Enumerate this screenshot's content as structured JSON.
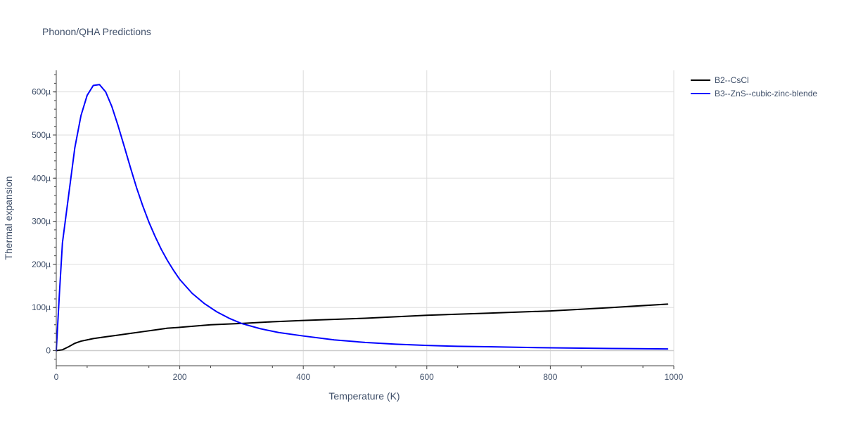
{
  "chart_data": {
    "type": "line",
    "title": "Phonon/QHA Predictions",
    "xlabel": "Temperature (K)",
    "ylabel": "Thermal expansion",
    "xlim": [
      0,
      1000
    ],
    "ylim": [
      -3.5e-05,
      0.00065
    ],
    "grid": true,
    "legend_position": "top-right",
    "x_ticks": [
      {
        "value": 0,
        "label": "0"
      },
      {
        "value": 200,
        "label": "200"
      },
      {
        "value": 400,
        "label": "400"
      },
      {
        "value": 600,
        "label": "600"
      },
      {
        "value": 800,
        "label": "800"
      },
      {
        "value": 1000,
        "label": "1000"
      }
    ],
    "y_ticks": [
      {
        "value": 0,
        "label": "0"
      },
      {
        "value": 0.0001,
        "label": "100µ"
      },
      {
        "value": 0.0002,
        "label": "200µ"
      },
      {
        "value": 0.0003,
        "label": "300µ"
      },
      {
        "value": 0.0004,
        "label": "400µ"
      },
      {
        "value": 0.0005,
        "label": "500µ"
      },
      {
        "value": 0.0006,
        "label": "600µ"
      }
    ],
    "series": [
      {
        "name": "B2--CsCl",
        "color": "#000000",
        "points": [
          [
            0,
            0
          ],
          [
            10,
            2e-06
          ],
          [
            20,
            9e-06
          ],
          [
            30,
            1.7e-05
          ],
          [
            40,
            2.2e-05
          ],
          [
            50,
            2.5e-05
          ],
          [
            60,
            2.8e-05
          ],
          [
            80,
            3.2e-05
          ],
          [
            100,
            3.6e-05
          ],
          [
            120,
            4e-05
          ],
          [
            140,
            4.4e-05
          ],
          [
            160,
            4.8e-05
          ],
          [
            180,
            5.2e-05
          ],
          [
            200,
            5.4e-05
          ],
          [
            250,
            6e-05
          ],
          [
            300,
            6.3e-05
          ],
          [
            350,
            6.7e-05
          ],
          [
            400,
            7e-05
          ],
          [
            500,
            7.5e-05
          ],
          [
            600,
            8.2e-05
          ],
          [
            700,
            8.7e-05
          ],
          [
            800,
            9.2e-05
          ],
          [
            900,
            0.0001
          ],
          [
            990,
            0.000108
          ]
        ]
      },
      {
        "name": "B3--ZnS--cubic-zinc-blende",
        "color": "#0000ff",
        "points": [
          [
            0,
            0
          ],
          [
            5,
            0.00013
          ],
          [
            10,
            0.00025
          ],
          [
            20,
            0.00036
          ],
          [
            30,
            0.00047
          ],
          [
            40,
            0.000545
          ],
          [
            50,
            0.000592
          ],
          [
            60,
            0.000615
          ],
          [
            70,
            0.000617
          ],
          [
            80,
            0.0006
          ],
          [
            90,
            0.000566
          ],
          [
            100,
            0.000522
          ],
          [
            110,
            0.000474
          ],
          [
            120,
            0.000425
          ],
          [
            130,
            0.000378
          ],
          [
            140,
            0.000336
          ],
          [
            150,
            0.000298
          ],
          [
            160,
            0.000265
          ],
          [
            170,
            0.000235
          ],
          [
            180,
            0.000209
          ],
          [
            190,
            0.000186
          ],
          [
            200,
            0.000165
          ],
          [
            220,
            0.000133
          ],
          [
            240,
            0.000109
          ],
          [
            260,
            9e-05
          ],
          [
            280,
            7.5e-05
          ],
          [
            300,
            6.3e-05
          ],
          [
            330,
            5.1e-05
          ],
          [
            360,
            4.2e-05
          ],
          [
            400,
            3.4e-05
          ],
          [
            450,
            2.5e-05
          ],
          [
            500,
            1.9e-05
          ],
          [
            550,
            1.5e-05
          ],
          [
            600,
            1.2e-05
          ],
          [
            650,
            1e-05
          ],
          [
            700,
            9e-06
          ],
          [
            800,
            6.5e-06
          ],
          [
            900,
            5e-06
          ],
          [
            990,
            4e-06
          ]
        ]
      }
    ]
  }
}
